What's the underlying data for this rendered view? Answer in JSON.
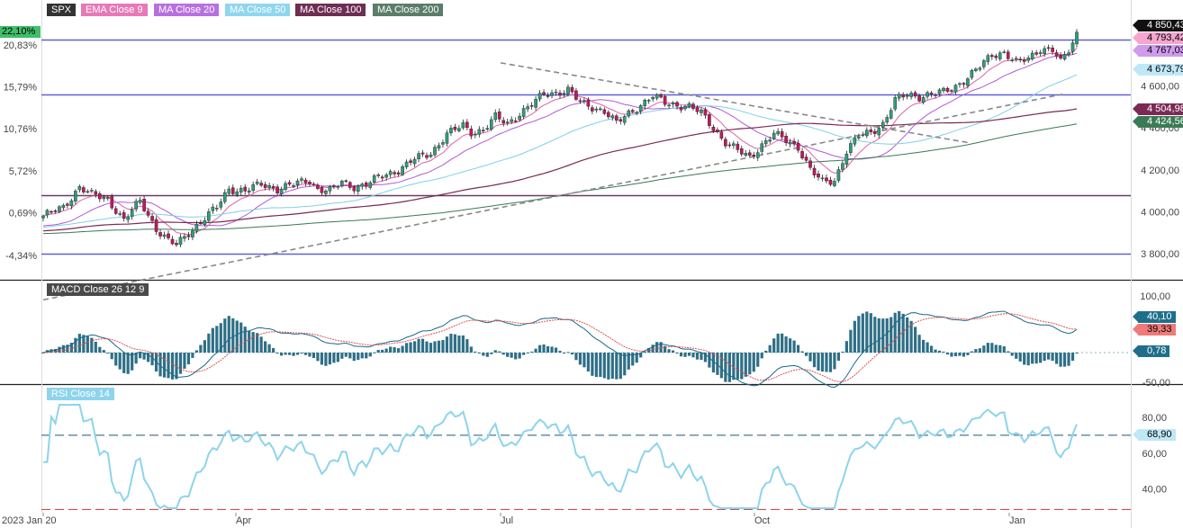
{
  "legend_tags": {
    "symbol": "SPX",
    "ema9": "EMA Close 9",
    "ma20": "MA Close 20",
    "ma50": "MA Close 50",
    "ma100": "MA Close 100",
    "ma200": "MA Close 200",
    "macd": "MACD Close 26 12 9",
    "rsi": "RSI Close 14"
  },
  "colors": {
    "up": "#2e9e78",
    "down": "#c2185b",
    "ema9": "#e060a8",
    "ma20": "#b05ad8",
    "ma50": "#7fd0e8",
    "ma100": "#7a2a55",
    "ma200": "#3a7a55",
    "hline": "#6060d8",
    "trend": "#888888",
    "macd": "#1a6a8a",
    "signal": "#e05050",
    "rsi": "#8dd4ec"
  },
  "price_labels": {
    "last": "4 850,43",
    "ema9": "4 793,42",
    "ma20": "4 767,03",
    "ma50": "4 673,79",
    "ma100": "4 504,98",
    "ma200": "4 424,56"
  },
  "percent_badge": "22,10%",
  "macd_labels": {
    "macd": "40,10",
    "signal": "39,33",
    "hist": "0,78"
  },
  "rsi_label": "68,90",
  "chart_data": {
    "type": "candlestick",
    "symbol": "SPX",
    "x_ticks": [
      "2023 Jan 20",
      "Apr",
      "Jul",
      "Oct",
      "Jan"
    ],
    "price_axis": {
      "ticks": [
        "4 600,00",
        "4 400,00",
        "4 200,00",
        "4 000,00",
        "3 800,00"
      ],
      "range": [
        3700,
        4930
      ]
    },
    "percent_axis": {
      "ticks": [
        "20,83%",
        "15,79%",
        "10,76%",
        "5,72%",
        "0,69%",
        "-4,34%"
      ]
    },
    "horizontal_lines": [
      4820,
      4560,
      4080,
      3800
    ],
    "price_keypoints": [
      [
        0,
        3980
      ],
      [
        5,
        4020
      ],
      [
        9,
        4120
      ],
      [
        12,
        4080
      ],
      [
        16,
        4060
      ],
      [
        20,
        3960
      ],
      [
        24,
        4050
      ],
      [
        28,
        3920
      ],
      [
        31,
        3860
      ],
      [
        33,
        3840
      ],
      [
        36,
        3900
      ],
      [
        40,
        3970
      ],
      [
        43,
        4020
      ],
      [
        46,
        4110
      ],
      [
        50,
        4100
      ],
      [
        54,
        4130
      ],
      [
        58,
        4110
      ],
      [
        62,
        4130
      ],
      [
        66,
        4150
      ],
      [
        68,
        4110
      ],
      [
        71,
        4100
      ],
      [
        74,
        4140
      ],
      [
        77,
        4120
      ],
      [
        80,
        4130
      ],
      [
        84,
        4170
      ],
      [
        88,
        4200
      ],
      [
        92,
        4250
      ],
      [
        96,
        4280
      ],
      [
        100,
        4370
      ],
      [
        104,
        4410
      ],
      [
        106,
        4380
      ],
      [
        109,
        4390
      ],
      [
        112,
        4450
      ],
      [
        115,
        4420
      ],
      [
        118,
        4470
      ],
      [
        121,
        4510
      ],
      [
        124,
        4560
      ],
      [
        127,
        4570
      ],
      [
        130,
        4580
      ],
      [
        133,
        4520
      ],
      [
        136,
        4500
      ],
      [
        139,
        4480
      ],
      [
        142,
        4420
      ],
      [
        145,
        4470
      ],
      [
        148,
        4510
      ],
      [
        151,
        4550
      ],
      [
        154,
        4520
      ],
      [
        157,
        4510
      ],
      [
        160,
        4500
      ],
      [
        163,
        4470
      ],
      [
        166,
        4400
      ],
      [
        169,
        4330
      ],
      [
        172,
        4290
      ],
      [
        175,
        4260
      ],
      [
        178,
        4320
      ],
      [
        181,
        4370
      ],
      [
        184,
        4340
      ],
      [
        187,
        4310
      ],
      [
        190,
        4200
      ],
      [
        193,
        4140
      ],
      [
        196,
        4150
      ],
      [
        199,
        4290
      ],
      [
        202,
        4360
      ],
      [
        205,
        4380
      ],
      [
        208,
        4420
      ],
      [
        211,
        4530
      ],
      [
        214,
        4560
      ],
      [
        217,
        4550
      ],
      [
        220,
        4560
      ],
      [
        223,
        4570
      ],
      [
        226,
        4600
      ],
      [
        229,
        4640
      ],
      [
        232,
        4690
      ],
      [
        235,
        4750
      ],
      [
        238,
        4760
      ],
      [
        241,
        4710
      ],
      [
        244,
        4730
      ],
      [
        247,
        4780
      ],
      [
        250,
        4770
      ],
      [
        252,
        4710
      ],
      [
        254,
        4770
      ],
      [
        256,
        4850
      ]
    ],
    "overlays": [
      "EMA Close 9",
      "MA Close 20",
      "MA Close 50",
      "MA Close 100",
      "MA Close 200"
    ],
    "macd_axis": {
      "ticks": [
        "100,00",
        "-50,00"
      ],
      "range": [
        -55,
        110
      ]
    },
    "rsi_axis": {
      "ticks": [
        "80,00",
        "60,00",
        "40,00"
      ],
      "range": [
        25,
        88
      ],
      "levels": [
        70,
        30
      ]
    }
  }
}
